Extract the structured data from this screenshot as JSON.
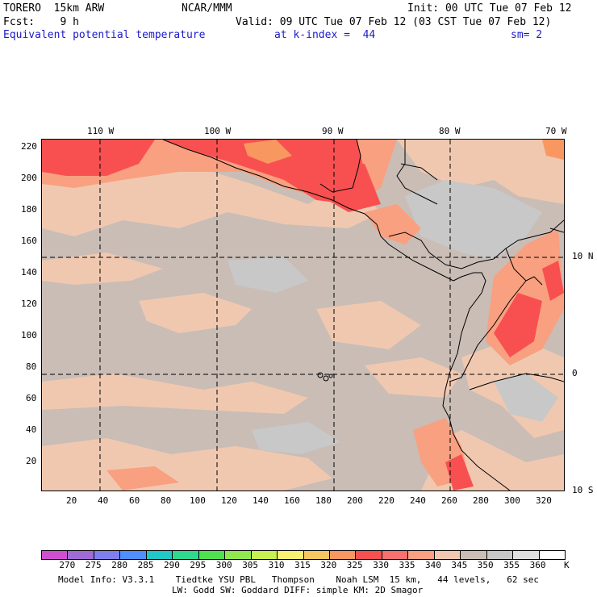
{
  "header": {
    "line1_left": "TORERO  15km ARW",
    "line1_center": "NCAR/MMM",
    "line1_right": "Init: 00 UTC Tue 07 Feb 12",
    "line2_left": "Fcst:    9 h",
    "line2_right": "Valid: 09 UTC Tue 07 Feb 12 (03 CST Tue 07 Feb 12)",
    "field_name": "Equivalent potential temperature",
    "level_text": "at k-index =  44",
    "smoothing": "sm= 2"
  },
  "map": {
    "top_lon_labels": [
      "110 W",
      "100 W",
      "90 W",
      "80 W",
      "70 W"
    ],
    "right_lat_labels": [
      "10 N",
      "0",
      "10 S"
    ],
    "y_ticks": [
      "220",
      "200",
      "180",
      "160",
      "140",
      "120",
      "100",
      "80",
      "60",
      "40",
      "20"
    ],
    "x_ticks": [
      "20",
      "40",
      "60",
      "80",
      "100",
      "120",
      "140",
      "160",
      "180",
      "200",
      "220",
      "240",
      "260",
      "280",
      "300",
      "320"
    ]
  },
  "colorbar": {
    "unit": "K",
    "levels": [
      "270",
      "275",
      "280",
      "285",
      "290",
      "295",
      "300",
      "305",
      "310",
      "315",
      "320",
      "325",
      "330",
      "335",
      "340",
      "345",
      "350",
      "355",
      "360"
    ],
    "colors": [
      "#d04fd0",
      "#9f6bd6",
      "#7f7ff0",
      "#4f8fff",
      "#20c8c8",
      "#2fd88f",
      "#4fe04f",
      "#8fe84f",
      "#c8f04f",
      "#f8f070",
      "#f8c860",
      "#f89860",
      "#f85050",
      "#f87070",
      "#f8a080",
      "#f0c8b0",
      "#c9bdb6",
      "#c8c8c8",
      "#e0e0e0",
      "#ffffff"
    ]
  },
  "footer": {
    "line1": "Model Info: V3.3.1    Tiedtke YSU PBL   Thompson    Noah LSM  15 km,   44 levels,   62 sec",
    "line2": "LW: Godd SW: Goddard DIFF: simple KM: 2D Smagor"
  }
}
